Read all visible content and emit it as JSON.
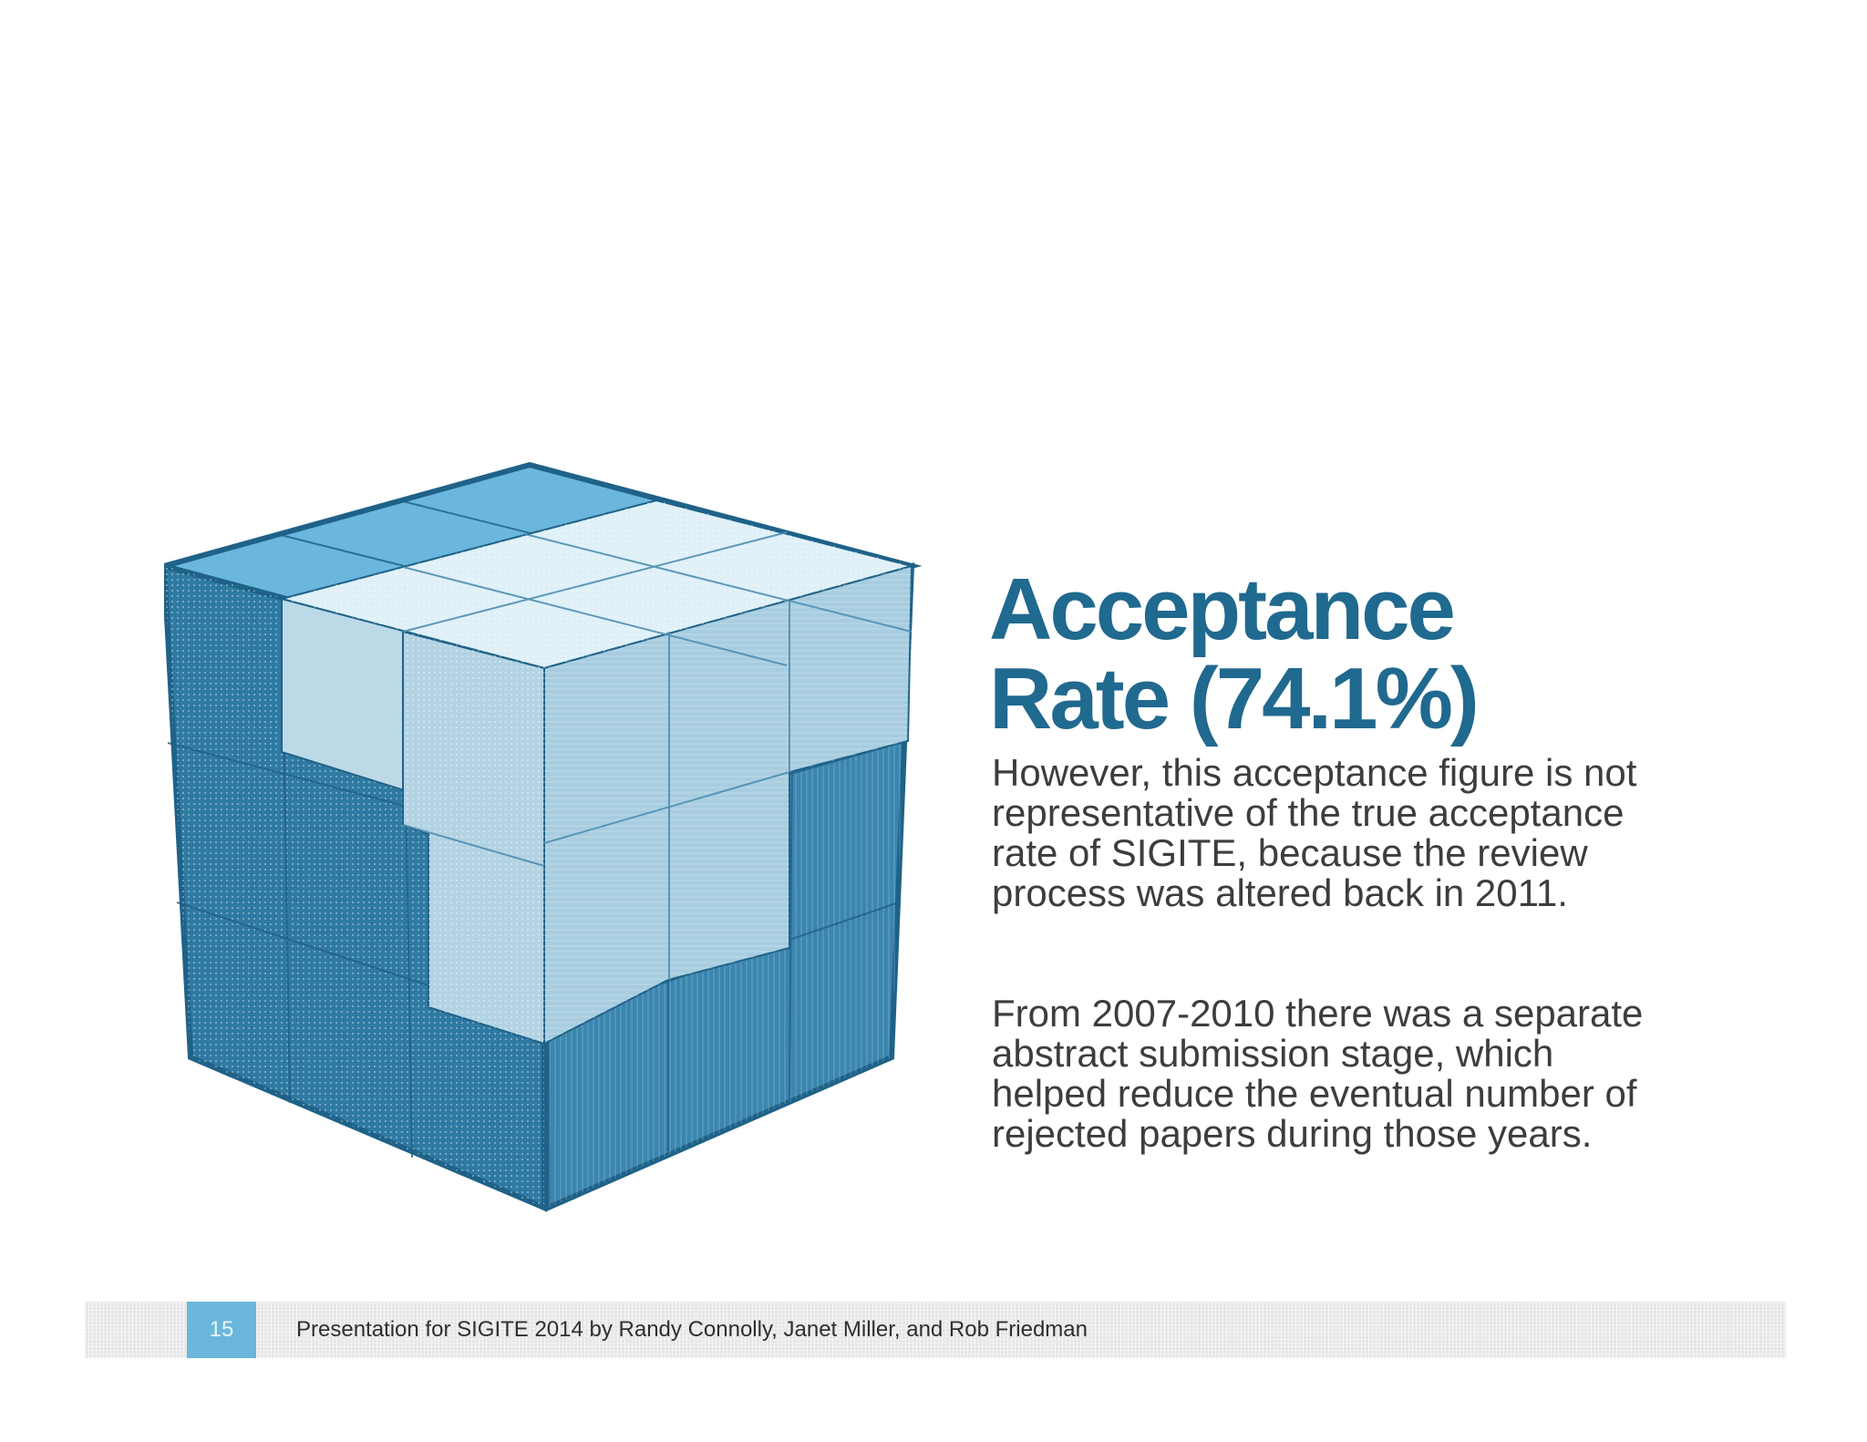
{
  "slide": {
    "title_line1": "Acceptance",
    "title_line2": "Rate (74.1%)",
    "paragraph1": "However, this acceptance figure is not representative of the true acceptance rate of SIGITE, because the review process was altered back in 2011.",
    "paragraph2": "From 2007-2010 there was a separate abstract submission stage, which helped reduce the eventual number of rejected papers during those years.",
    "figure_icon": "cube-icon"
  },
  "footer": {
    "page_number": "15",
    "text": "Presentation for SIGITE 2014 by Randy Connolly, Janet Miller, and Rob Friedman"
  },
  "colors": {
    "title": "#20698f",
    "body_text": "#3d3d3d",
    "page_badge": "#6ab6dc",
    "cube_dark": "#2f7aa2",
    "cube_light": "#b9dcec",
    "cube_top": "#6ab6dc"
  }
}
